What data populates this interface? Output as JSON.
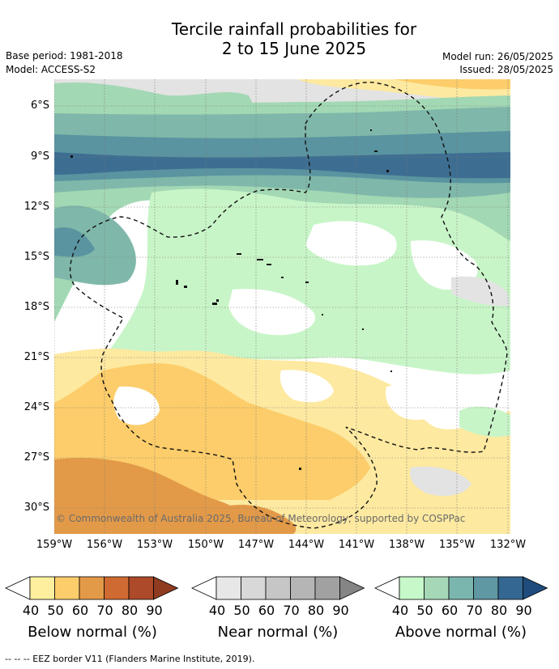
{
  "header": {
    "title_line1": "Tercile rainfall probabilities for",
    "title_line2": "2 to 15 June 2025",
    "base_period": "Base period: 1981-2018",
    "model": "Model: ACCESS-S2",
    "model_run": "Model run: 26/05/2025",
    "issued": "Issued: 28/05/2025"
  },
  "map": {
    "lat_ticks": [
      "6°S",
      "9°S",
      "12°S",
      "15°S",
      "18°S",
      "21°S",
      "24°S",
      "27°S",
      "30°S"
    ],
    "lon_ticks": [
      "159°W",
      "156°W",
      "153°W",
      "150°W",
      "147°W",
      "144°W",
      "141°W",
      "138°W",
      "135°W",
      "132°W"
    ],
    "copyright": "© Commonwealth of Australia 2025, Bureau of Meteorology, supported by COSPPac",
    "colors": {
      "above_40": "#c8f5c8",
      "above_50": "#a3d8b4",
      "above_60": "#7fb8aa",
      "above_70": "#5a94a0",
      "above_80": "#3d6e92",
      "below_40": "#fde9a0",
      "below_50": "#fccd6a",
      "below_60": "#e39a48",
      "near_40": "#e2e2e2"
    }
  },
  "colorbars": [
    {
      "label": "Below normal (%)",
      "ticks": [
        "40",
        "50",
        "60",
        "70",
        "80",
        "90"
      ],
      "colors": [
        "#ffffff",
        "#fdef9e",
        "#fdcd6b",
        "#e39a48",
        "#cf6a33",
        "#ad4a29",
        "#8e3b20"
      ]
    },
    {
      "label": "Near normal (%)",
      "ticks": [
        "40",
        "50",
        "60",
        "70",
        "80",
        "90"
      ],
      "colors": [
        "#ffffff",
        "#e7e7e7",
        "#d8d8d8",
        "#c6c6c6",
        "#b5b5b5",
        "#a1a1a1",
        "#858585"
      ]
    },
    {
      "label": "Above normal (%)",
      "ticks": [
        "40",
        "50",
        "60",
        "70",
        "80",
        "90"
      ],
      "colors": [
        "#ffffff",
        "#c6f8ca",
        "#a6d8b8",
        "#7bb6ae",
        "#5f97a3",
        "#346893",
        "#1f4c7d"
      ]
    }
  ],
  "footer": "--  --  -- EEZ border V11 (Flanders Marine Institute, 2019)."
}
